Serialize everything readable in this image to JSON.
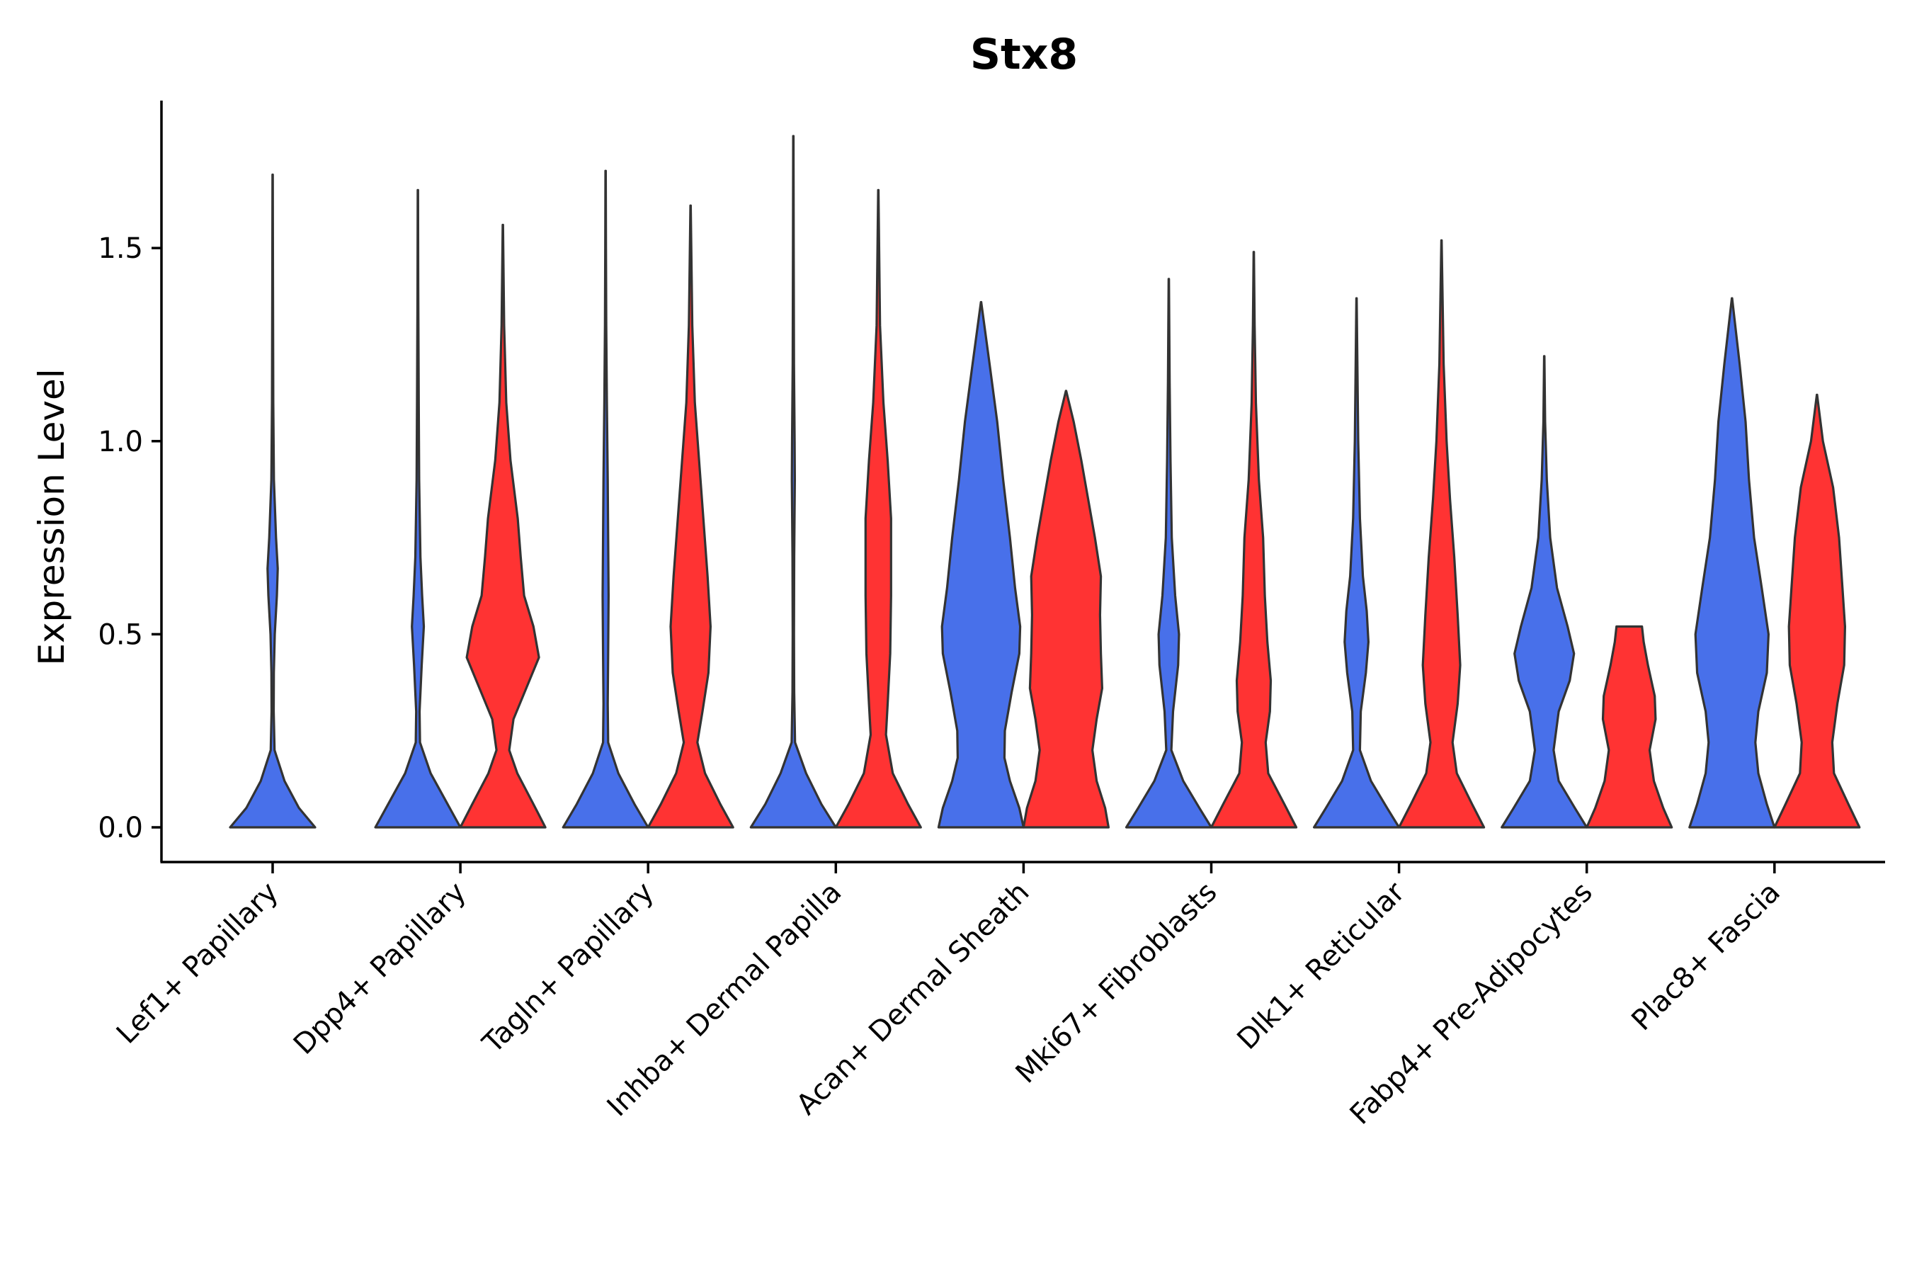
{
  "chart_data": {
    "type": "violin",
    "title": "Stx8",
    "xlabel": "",
    "ylabel": "Expression Level",
    "ylim": [
      -0.09,
      1.88
    ],
    "yticks": [
      "0.0",
      "0.5",
      "1.0",
      "1.5"
    ],
    "ytick_values": [
      0.0,
      0.5,
      1.0,
      1.5
    ],
    "colors": {
      "blue": "#4870EA",
      "red": "#FF3333",
      "outline": "#333333"
    },
    "categories": [
      "Lef1+ Papillary",
      "Dpp4+ Papillary",
      "Tagln+ Papillary",
      "Inhba+ Dermal Papilla",
      "Acan+ Dermal Sheath",
      "Mki67+ Fibroblasts",
      "Dlk1+ Reticular",
      "Fabp4+ Pre-Adipocytes",
      "Plac8+ Fascia"
    ],
    "groups": [
      {
        "name": "blue",
        "max": [
          1.69,
          1.65,
          1.7,
          1.79,
          1.36,
          1.42,
          1.37,
          1.22,
          1.37
        ]
      },
      {
        "name": "red",
        "max": [
          null,
          1.56,
          1.61,
          1.65,
          1.13,
          1.49,
          1.52,
          0.52,
          1.12
        ]
      }
    ],
    "violins": [
      {
        "category": 0,
        "group": "blue",
        "ymax": 1.69,
        "profile": [
          [
            0,
            1.0
          ],
          [
            0.05,
            0.62
          ],
          [
            0.12,
            0.28
          ],
          [
            0.2,
            0.045
          ],
          [
            0.3,
            0.025
          ],
          [
            0.4,
            0.028
          ],
          [
            0.5,
            0.05
          ],
          [
            0.6,
            0.1
          ],
          [
            0.67,
            0.12
          ],
          [
            0.75,
            0.08
          ],
          [
            0.9,
            0.03
          ],
          [
            1.1,
            0.015
          ],
          [
            1.4,
            0.008
          ],
          [
            1.69,
            0.004
          ]
        ]
      },
      {
        "category": 1,
        "group": "blue",
        "ymax": 1.65,
        "profile": [
          [
            0,
            1.0
          ],
          [
            0.06,
            0.7
          ],
          [
            0.14,
            0.3
          ],
          [
            0.22,
            0.05
          ],
          [
            0.3,
            0.04
          ],
          [
            0.42,
            0.09
          ],
          [
            0.52,
            0.14
          ],
          [
            0.6,
            0.1
          ],
          [
            0.7,
            0.06
          ],
          [
            0.9,
            0.03
          ],
          [
            1.1,
            0.02
          ],
          [
            1.4,
            0.008
          ],
          [
            1.65,
            0.004
          ]
        ]
      },
      {
        "category": 1,
        "group": "red",
        "ymax": 1.56,
        "profile": [
          [
            0,
            1.0
          ],
          [
            0.06,
            0.72
          ],
          [
            0.14,
            0.34
          ],
          [
            0.2,
            0.15
          ],
          [
            0.28,
            0.25
          ],
          [
            0.36,
            0.55
          ],
          [
            0.44,
            0.85
          ],
          [
            0.52,
            0.72
          ],
          [
            0.6,
            0.5
          ],
          [
            0.7,
            0.42
          ],
          [
            0.8,
            0.35
          ],
          [
            0.95,
            0.18
          ],
          [
            1.1,
            0.08
          ],
          [
            1.3,
            0.03
          ],
          [
            1.56,
            0.004
          ]
        ]
      },
      {
        "category": 2,
        "group": "blue",
        "ymax": 1.7,
        "profile": [
          [
            0,
            1.0
          ],
          [
            0.06,
            0.68
          ],
          [
            0.14,
            0.3
          ],
          [
            0.22,
            0.06
          ],
          [
            0.32,
            0.05
          ],
          [
            0.45,
            0.06
          ],
          [
            0.6,
            0.07
          ],
          [
            0.75,
            0.06
          ],
          [
            0.9,
            0.05
          ],
          [
            1.1,
            0.03
          ],
          [
            1.3,
            0.015
          ],
          [
            1.5,
            0.008
          ],
          [
            1.7,
            0.004
          ]
        ]
      },
      {
        "category": 2,
        "group": "red",
        "ymax": 1.61,
        "profile": [
          [
            0,
            1.0
          ],
          [
            0.06,
            0.7
          ],
          [
            0.14,
            0.34
          ],
          [
            0.22,
            0.16
          ],
          [
            0.3,
            0.28
          ],
          [
            0.4,
            0.42
          ],
          [
            0.52,
            0.47
          ],
          [
            0.65,
            0.4
          ],
          [
            0.8,
            0.3
          ],
          [
            0.95,
            0.2
          ],
          [
            1.1,
            0.1
          ],
          [
            1.3,
            0.04
          ],
          [
            1.61,
            0.004
          ]
        ]
      },
      {
        "category": 3,
        "group": "blue",
        "ymax": 1.79,
        "profile": [
          [
            0,
            1.0
          ],
          [
            0.06,
            0.66
          ],
          [
            0.14,
            0.3
          ],
          [
            0.22,
            0.04
          ],
          [
            0.35,
            0.02
          ],
          [
            0.5,
            0.015
          ],
          [
            0.7,
            0.02
          ],
          [
            0.9,
            0.035
          ],
          [
            1.0,
            0.03
          ],
          [
            1.2,
            0.015
          ],
          [
            1.5,
            0.008
          ],
          [
            1.79,
            0.004
          ]
        ]
      },
      {
        "category": 3,
        "group": "red",
        "ymax": 1.65,
        "profile": [
          [
            0,
            1.0
          ],
          [
            0.06,
            0.7
          ],
          [
            0.14,
            0.34
          ],
          [
            0.24,
            0.18
          ],
          [
            0.32,
            0.22
          ],
          [
            0.45,
            0.28
          ],
          [
            0.6,
            0.3
          ],
          [
            0.8,
            0.3
          ],
          [
            0.95,
            0.22
          ],
          [
            1.1,
            0.12
          ],
          [
            1.3,
            0.04
          ],
          [
            1.65,
            0.004
          ]
        ]
      },
      {
        "category": 4,
        "group": "blue",
        "ymax": 1.36,
        "profile": [
          [
            0,
            1.0
          ],
          [
            0.05,
            0.9
          ],
          [
            0.12,
            0.68
          ],
          [
            0.18,
            0.55
          ],
          [
            0.25,
            0.56
          ],
          [
            0.35,
            0.72
          ],
          [
            0.45,
            0.9
          ],
          [
            0.52,
            0.92
          ],
          [
            0.62,
            0.8
          ],
          [
            0.75,
            0.68
          ],
          [
            0.9,
            0.52
          ],
          [
            1.05,
            0.38
          ],
          [
            1.2,
            0.2
          ],
          [
            1.36,
            0.004
          ]
        ]
      },
      {
        "category": 4,
        "group": "red",
        "ymax": 1.13,
        "profile": [
          [
            0,
            1.0
          ],
          [
            0.05,
            0.92
          ],
          [
            0.12,
            0.72
          ],
          [
            0.2,
            0.62
          ],
          [
            0.28,
            0.72
          ],
          [
            0.36,
            0.85
          ],
          [
            0.45,
            0.82
          ],
          [
            0.55,
            0.8
          ],
          [
            0.65,
            0.82
          ],
          [
            0.75,
            0.68
          ],
          [
            0.85,
            0.52
          ],
          [
            0.95,
            0.36
          ],
          [
            1.05,
            0.18
          ],
          [
            1.13,
            0.004
          ]
        ]
      },
      {
        "category": 5,
        "group": "blue",
        "ymax": 1.42,
        "profile": [
          [
            0,
            1.0
          ],
          [
            0.05,
            0.72
          ],
          [
            0.12,
            0.34
          ],
          [
            0.2,
            0.06
          ],
          [
            0.3,
            0.1
          ],
          [
            0.42,
            0.22
          ],
          [
            0.5,
            0.24
          ],
          [
            0.6,
            0.15
          ],
          [
            0.75,
            0.07
          ],
          [
            0.95,
            0.04
          ],
          [
            1.15,
            0.02
          ],
          [
            1.42,
            0.004
          ]
        ]
      },
      {
        "category": 5,
        "group": "red",
        "ymax": 1.49,
        "profile": [
          [
            0,
            1.0
          ],
          [
            0.06,
            0.72
          ],
          [
            0.14,
            0.34
          ],
          [
            0.22,
            0.28
          ],
          [
            0.3,
            0.38
          ],
          [
            0.38,
            0.4
          ],
          [
            0.48,
            0.32
          ],
          [
            0.6,
            0.26
          ],
          [
            0.75,
            0.22
          ],
          [
            0.9,
            0.12
          ],
          [
            1.1,
            0.05
          ],
          [
            1.3,
            0.02
          ],
          [
            1.49,
            0.004
          ]
        ]
      },
      {
        "category": 6,
        "group": "blue",
        "ymax": 1.37,
        "profile": [
          [
            0,
            1.0
          ],
          [
            0.05,
            0.72
          ],
          [
            0.12,
            0.34
          ],
          [
            0.2,
            0.08
          ],
          [
            0.3,
            0.1
          ],
          [
            0.4,
            0.22
          ],
          [
            0.48,
            0.28
          ],
          [
            0.56,
            0.24
          ],
          [
            0.65,
            0.15
          ],
          [
            0.8,
            0.08
          ],
          [
            1.0,
            0.04
          ],
          [
            1.2,
            0.02
          ],
          [
            1.37,
            0.004
          ]
        ]
      },
      {
        "category": 6,
        "group": "red",
        "ymax": 1.52,
        "profile": [
          [
            0,
            1.0
          ],
          [
            0.06,
            0.72
          ],
          [
            0.14,
            0.36
          ],
          [
            0.22,
            0.26
          ],
          [
            0.32,
            0.38
          ],
          [
            0.42,
            0.44
          ],
          [
            0.55,
            0.38
          ],
          [
            0.7,
            0.3
          ],
          [
            0.85,
            0.2
          ],
          [
            1.0,
            0.12
          ],
          [
            1.2,
            0.05
          ],
          [
            1.52,
            0.004
          ]
        ]
      },
      {
        "category": 7,
        "group": "blue",
        "ymax": 1.22,
        "profile": [
          [
            0,
            1.0
          ],
          [
            0.05,
            0.72
          ],
          [
            0.12,
            0.34
          ],
          [
            0.2,
            0.22
          ],
          [
            0.3,
            0.34
          ],
          [
            0.38,
            0.6
          ],
          [
            0.45,
            0.7
          ],
          [
            0.52,
            0.55
          ],
          [
            0.62,
            0.3
          ],
          [
            0.75,
            0.14
          ],
          [
            0.9,
            0.06
          ],
          [
            1.05,
            0.02
          ],
          [
            1.22,
            0.004
          ]
        ]
      },
      {
        "category": 7,
        "group": "red",
        "ymax": 0.52,
        "profile": [
          [
            0,
            1.0
          ],
          [
            0.05,
            0.8
          ],
          [
            0.12,
            0.58
          ],
          [
            0.2,
            0.48
          ],
          [
            0.28,
            0.62
          ],
          [
            0.34,
            0.6
          ],
          [
            0.42,
            0.44
          ],
          [
            0.48,
            0.34
          ],
          [
            0.52,
            0.3
          ]
        ]
      },
      {
        "category": 8,
        "group": "blue",
        "ymax": 1.37,
        "profile": [
          [
            0,
            1.0
          ],
          [
            0.06,
            0.82
          ],
          [
            0.14,
            0.62
          ],
          [
            0.22,
            0.55
          ],
          [
            0.3,
            0.62
          ],
          [
            0.4,
            0.82
          ],
          [
            0.5,
            0.86
          ],
          [
            0.62,
            0.7
          ],
          [
            0.75,
            0.52
          ],
          [
            0.9,
            0.4
          ],
          [
            1.05,
            0.32
          ],
          [
            1.2,
            0.18
          ],
          [
            1.37,
            0.004
          ]
        ]
      },
      {
        "category": 8,
        "group": "red",
        "ymax": 1.12,
        "profile": [
          [
            0,
            1.0
          ],
          [
            0.06,
            0.74
          ],
          [
            0.14,
            0.4
          ],
          [
            0.22,
            0.36
          ],
          [
            0.32,
            0.48
          ],
          [
            0.42,
            0.64
          ],
          [
            0.52,
            0.66
          ],
          [
            0.62,
            0.6
          ],
          [
            0.75,
            0.52
          ],
          [
            0.88,
            0.38
          ],
          [
            1.0,
            0.14
          ],
          [
            1.12,
            0.004
          ]
        ]
      }
    ]
  }
}
